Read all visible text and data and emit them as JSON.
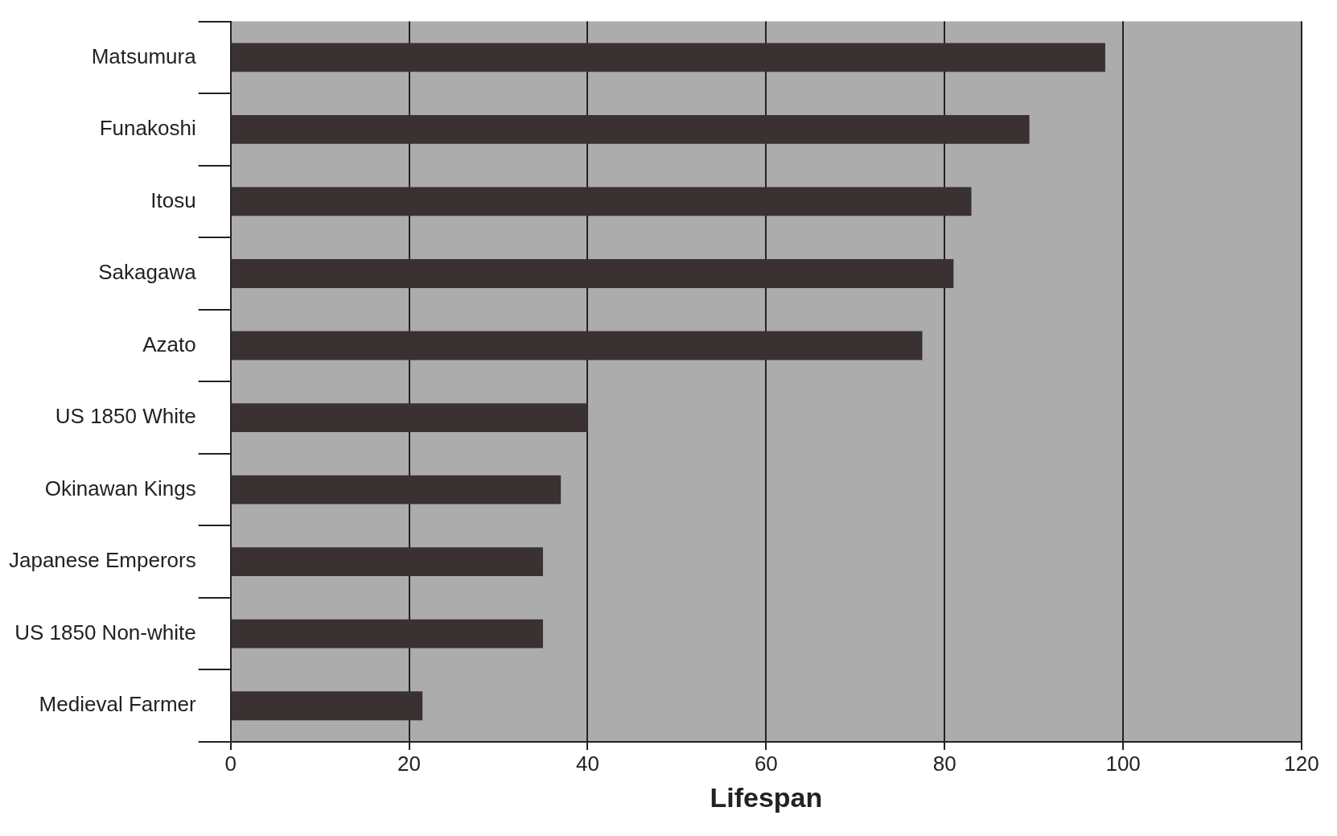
{
  "chart_data": {
    "type": "bar",
    "orientation": "horizontal",
    "xlabel": "Lifespan",
    "categories": [
      "Matsumura",
      "Funakoshi",
      "Itosu",
      "Sakagawa",
      "Azato",
      "US 1850 White",
      "Okinawan Kings",
      "Japanese Emperors",
      "US 1850 Non-white",
      "Medieval Farmer"
    ],
    "values": [
      98,
      89.5,
      83,
      81,
      77.5,
      40,
      37,
      35,
      35,
      21.5
    ],
    "color": "#3a3232",
    "xlim": [
      0,
      120
    ],
    "xticks": [
      0,
      20,
      40,
      60,
      80,
      100,
      120
    ],
    "grid": "x",
    "legend": false
  }
}
